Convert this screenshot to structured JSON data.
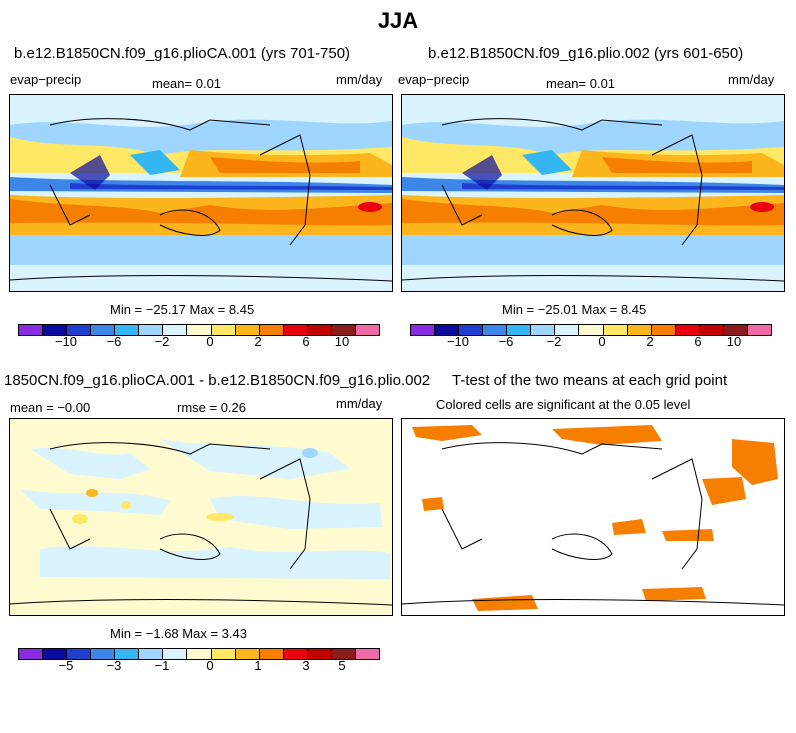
{
  "title": "JJA",
  "panels": [
    {
      "title": "b.e12.B1850CN.f09_g16.plioCA.001 (yrs 701-750)",
      "var": "evap−precip",
      "mean": "mean=    0.01",
      "units": "mm/day",
      "minmax": "Min = −25.17  Max =    8.45"
    },
    {
      "title": "b.e12.B1850CN.f09_g16.plio.002 (yrs 601-650)",
      "var": "evap−precip",
      "mean": "mean=    0.01",
      "units": "mm/day",
      "minmax": "Min = −25.01  Max =    8.45"
    },
    {
      "title": "1850CN.f09_g16.plioCA.001 - b.e12.B1850CN.f09_g16.plio.002",
      "mean": "mean =  −0.00",
      "rmse": "rmse =    0.26",
      "units": "mm/day",
      "minmax": "Min =  −1.68  Max =    3.43"
    },
    {
      "title": "T-test of the two means at each grid point",
      "subtitle": "Colored cells are significant at the 0.05 level"
    }
  ],
  "colorbar_main": {
    "colors": [
      "#8a2be2",
      "#0a0aa0",
      "#1f3fd0",
      "#3c86e8",
      "#34b6f2",
      "#9fd6ff",
      "#d9f3ff",
      "#fffbd0",
      "#ffe866",
      "#fcb51c",
      "#f77f00",
      "#e8000f",
      "#c00000",
      "#8c1c1c",
      "#ee6aa7"
    ],
    "labels": [
      "−10",
      "−6",
      "−2",
      "0",
      "2",
      "6",
      "10"
    ]
  },
  "colorbar_diff": {
    "colors": [
      "#8a2be2",
      "#0a0aa0",
      "#1f3fd0",
      "#3c86e8",
      "#34b6f2",
      "#9fd6ff",
      "#d9f3ff",
      "#fffbd0",
      "#ffe866",
      "#fcb51c",
      "#f77f00",
      "#e8000f",
      "#c00000",
      "#8c1c1c",
      "#ee6aa7"
    ],
    "labels": [
      "−5",
      "−3",
      "−1",
      "0",
      "1",
      "3",
      "5"
    ]
  }
}
